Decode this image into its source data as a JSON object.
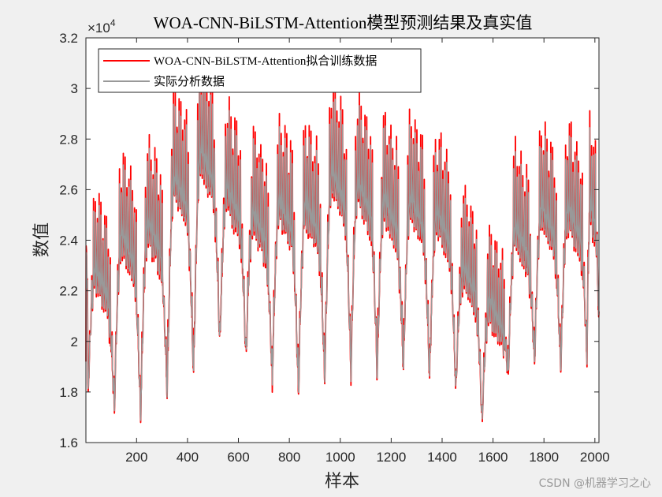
{
  "chart_data": {
    "type": "line",
    "title": "WOA-CNN-BiLSTM-Attention模型预测结果及真实值",
    "xlabel": "样本",
    "ylabel": "数值",
    "exponent_label": "×10",
    "exponent_power": "4",
    "xlim": [
      1,
      2016
    ],
    "ylim": [
      16000,
      32000
    ],
    "x_ticks": [
      200,
      400,
      600,
      800,
      1000,
      1200,
      1400,
      1600,
      1800,
      2000
    ],
    "x_tick_labels": [
      "200",
      "400",
      "600",
      "800",
      "1000",
      "1200",
      "1400",
      "1600",
      "1800",
      "2000"
    ],
    "y_ticks": [
      16000,
      18000,
      20000,
      22000,
      24000,
      26000,
      28000,
      30000,
      32000
    ],
    "y_tick_labels": [
      "1.6",
      "1.8",
      "2",
      "2.2",
      "2.4",
      "2.6",
      "2.8",
      "3",
      "3.2"
    ],
    "legend_position": "top-left",
    "grid": false,
    "cycle_length": 103,
    "troughs": [
      {
        "x": 1,
        "y": 18900
      },
      {
        "x": 9,
        "y": 17800
      },
      {
        "x": 113,
        "y": 17300
      },
      {
        "x": 216,
        "y": 17000
      },
      {
        "x": 320,
        "y": 17900
      },
      {
        "x": 424,
        "y": 18700
      },
      {
        "x": 527,
        "y": 19900
      },
      {
        "x": 630,
        "y": 19300
      },
      {
        "x": 733,
        "y": 18400
      },
      {
        "x": 836,
        "y": 17900
      },
      {
        "x": 939,
        "y": 18500
      },
      {
        "x": 1042,
        "y": 18700
      },
      {
        "x": 1145,
        "y": 18700
      },
      {
        "x": 1248,
        "y": 18900
      },
      {
        "x": 1351,
        "y": 18600
      },
      {
        "x": 1454,
        "y": 18000
      },
      {
        "x": 1557,
        "y": 16800
      },
      {
        "x": 1660,
        "y": 18700
      },
      {
        "x": 1763,
        "y": 19100
      },
      {
        "x": 1866,
        "y": 18800
      },
      {
        "x": 1969,
        "y": 19400
      },
      {
        "x": 2016,
        "y": 20600
      }
    ],
    "peaks": [
      {
        "x": 40,
        "y": 25700
      },
      {
        "x": 137,
        "y": 24900
      },
      {
        "x": 240,
        "y": 26400
      },
      {
        "x": 343,
        "y": 26900
      },
      {
        "x": 447,
        "y": 28900
      },
      {
        "x": 520,
        "y": 30000
      },
      {
        "x": 600,
        "y": 28400
      },
      {
        "x": 713,
        "y": 27300
      },
      {
        "x": 813,
        "y": 27800
      },
      {
        "x": 915,
        "y": 27700
      },
      {
        "x": 1005,
        "y": 29100
      },
      {
        "x": 1103,
        "y": 28600
      },
      {
        "x": 1198,
        "y": 27900
      },
      {
        "x": 1293,
        "y": 28000
      },
      {
        "x": 1392,
        "y": 27300
      },
      {
        "x": 1486,
        "y": 25000
      },
      {
        "x": 1598,
        "y": 23500
      },
      {
        "x": 1687,
        "y": 26700
      },
      {
        "x": 1787,
        "y": 27600
      },
      {
        "x": 1888,
        "y": 27500
      },
      {
        "x": 1988,
        "y": 27800
      }
    ],
    "series": [
      {
        "name": "WOA-CNN-BiLSTM-Attention拟合训练数据",
        "color": "#ff0000"
      },
      {
        "name": "实际分析数据",
        "color": "#999999"
      }
    ]
  },
  "watermark": "CSDN @机器学习之心"
}
